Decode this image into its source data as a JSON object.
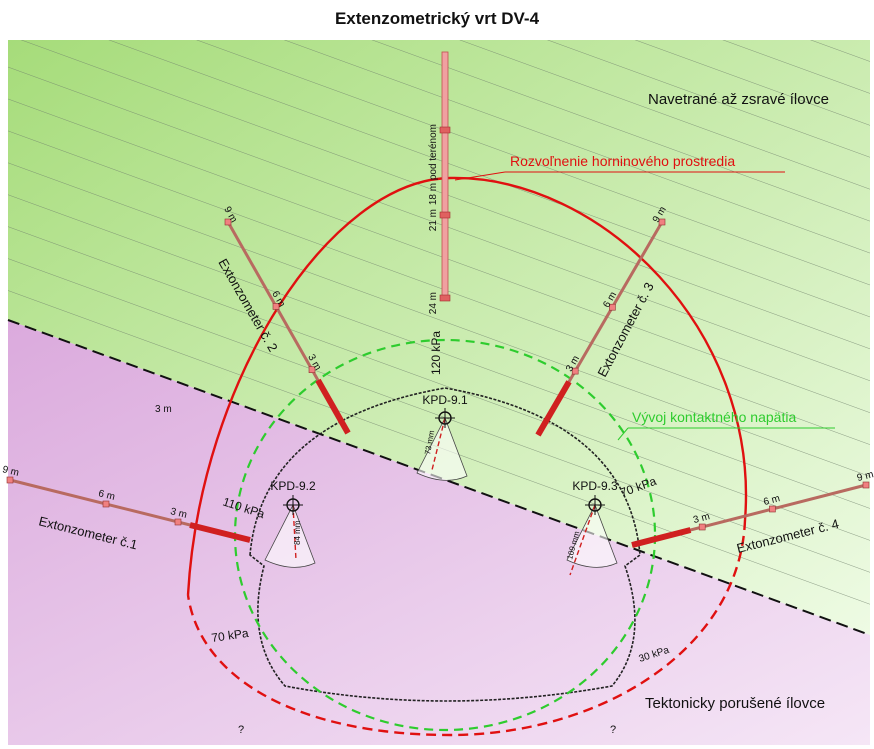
{
  "title": "Extenzometrický vrt DV-4",
  "zones": {
    "upper": "Navetrané až zsravé ílovce",
    "lower": "Tektonicky porušené ílovce"
  },
  "curves": {
    "loosening": "Rozvoľnenie horninového prostredia",
    "contact_stress": "Vývoj kontaktného napätia"
  },
  "borehole": {
    "depths": [
      "18 m pod terénom",
      "21 m",
      "24 m"
    ]
  },
  "extensometers": [
    {
      "label": "Extonzometer č.1",
      "depths": [
        "3 m",
        "6 m",
        "9 m"
      ]
    },
    {
      "label": "Extonzometer č. 2",
      "depths": [
        "3 m",
        "6 m",
        "9 m"
      ]
    },
    {
      "label": "Extonzometer č. 3",
      "depths": [
        "3 m",
        "6 m",
        "9 m"
      ]
    },
    {
      "label": "Extonzometer č. 4",
      "depths": [
        "3 m",
        "6 m",
        "9 m"
      ]
    }
  ],
  "points": [
    {
      "label": "KPD-9.1",
      "displacement": "73 mm",
      "pressure": "120 kPa"
    },
    {
      "label": "KPD-9.2",
      "displacement": "84 mm",
      "pressure": "110 kPa"
    },
    {
      "label": "KPD-9.3",
      "displacement": "109 mm",
      "pressure": "70 kPa"
    }
  ],
  "pressures": [
    "70 kPa",
    "30 kPa"
  ],
  "notes": [
    "3 m",
    "?",
    "?"
  ]
}
